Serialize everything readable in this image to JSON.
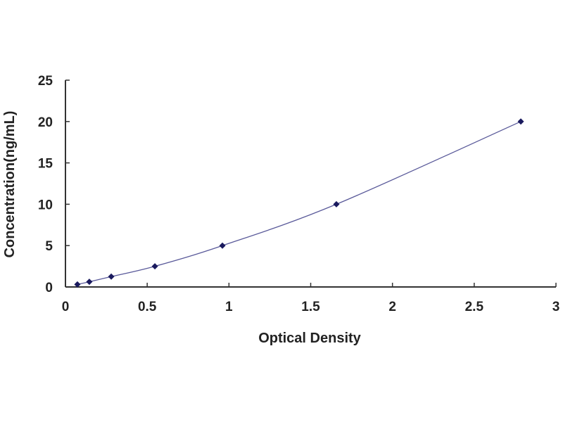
{
  "chart_data": {
    "type": "scatter",
    "title": "",
    "xlabel": "Optical Density",
    "ylabel": "Concentration(ng/mL)",
    "xlim": [
      0,
      3
    ],
    "ylim": [
      0,
      25
    ],
    "xticks": [
      "0",
      "0.5",
      "1",
      "1.5",
      "2",
      "2.5",
      "3"
    ],
    "yticks": [
      "0",
      "5",
      "10",
      "15",
      "20",
      "25"
    ],
    "grid": false,
    "trendline": "smooth curve through points",
    "x": [
      0.073,
      0.146,
      0.28,
      0.547,
      0.96,
      1.657,
      2.785
    ],
    "y": [
      0.312,
      0.625,
      1.25,
      2.5,
      5,
      10,
      20
    ],
    "colors": {
      "points": "#1a1a5e",
      "curve": "#5a5a9a",
      "axis": "#333333"
    }
  }
}
